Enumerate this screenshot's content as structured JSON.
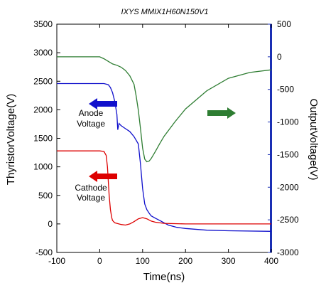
{
  "chart_data": {
    "type": "line",
    "title": "IXYS MMIX1H60N150V1",
    "xlabel": "Time(ns)",
    "ylabel_left": "ThyristorVoltage(V)",
    "ylabel_right": "OutputVoltage(V)",
    "xlim": [
      -100,
      400
    ],
    "ylim_left": [
      -500,
      3500
    ],
    "ylim_right": [
      -3000,
      500
    ],
    "x_ticks": [
      "-100",
      "0",
      "100",
      "200",
      "300",
      "400"
    ],
    "x_tick_values": [
      -100,
      0,
      100,
      200,
      300,
      400
    ],
    "y_left_ticks": [
      "-500",
      "0",
      "500",
      "1000",
      "1500",
      "2000",
      "2500",
      "3000",
      "3500"
    ],
    "y_left_tick_values": [
      -500,
      0,
      500,
      1000,
      1500,
      2000,
      2500,
      3000,
      3500
    ],
    "y_right_ticks": [
      "500",
      "0",
      "-500",
      "-1000",
      "-1500",
      "-2000",
      "-2500",
      "-3000"
    ],
    "y_right_tick_values": [
      500,
      0,
      -500,
      -1000,
      -1500,
      -2000,
      -2500,
      -3000
    ],
    "grid": false,
    "series": [
      {
        "name": "Anode Voltage",
        "axis": "left",
        "color": "#1010cc",
        "x": [
          -100,
          0,
          10,
          20,
          25,
          30,
          35,
          40,
          42,
          45,
          50,
          60,
          70,
          80,
          90,
          95,
          100,
          105,
          110,
          115,
          120,
          130,
          140,
          150,
          160,
          180,
          200,
          250,
          300,
          400
        ],
        "y": [
          2460,
          2460,
          2460,
          2440,
          2390,
          2300,
          2150,
          1920,
          1650,
          1760,
          1720,
          1670,
          1620,
          1530,
          1400,
          1050,
          620,
          350,
          250,
          190,
          140,
          100,
          60,
          20,
          -20,
          -60,
          -80,
          -110,
          -120,
          -130
        ]
      },
      {
        "name": "Cathode Voltage",
        "axis": "left",
        "color": "#dd0000",
        "x": [
          -100,
          0,
          10,
          15,
          18,
          20,
          22,
          25,
          28,
          30,
          35,
          40,
          50,
          60,
          70,
          80,
          90,
          100,
          110,
          120,
          130,
          150,
          200,
          300,
          400
        ],
        "y": [
          1280,
          1280,
          1270,
          1200,
          1000,
          750,
          500,
          250,
          110,
          60,
          20,
          10,
          -10,
          -20,
          0,
          40,
          90,
          110,
          90,
          50,
          30,
          10,
          0,
          0,
          0
        ]
      },
      {
        "name": "Output Voltage",
        "axis": "right",
        "color": "#2e7d32",
        "x": [
          -100,
          0,
          10,
          20,
          30,
          40,
          50,
          60,
          70,
          80,
          85,
          90,
          95,
          100,
          105,
          110,
          115,
          120,
          130,
          140,
          150,
          175,
          200,
          250,
          300,
          350,
          400
        ],
        "y": [
          0,
          0,
          -30,
          -70,
          -110,
          -130,
          -160,
          -210,
          -290,
          -420,
          -600,
          -820,
          -1100,
          -1400,
          -1570,
          -1610,
          -1600,
          -1560,
          -1450,
          -1330,
          -1220,
          -1000,
          -800,
          -520,
          -330,
          -240,
          -200
        ]
      }
    ],
    "annotations": [
      {
        "label_lines": [
          "Anode",
          "Voltage"
        ],
        "arrow": "left",
        "color": "#1010cc"
      },
      {
        "label_lines": [
          "Cathode",
          "Voltage"
        ],
        "arrow": "left",
        "color": "#dd0000"
      },
      {
        "label_lines": [],
        "arrow": "right",
        "color": "#2e7d32"
      }
    ]
  }
}
